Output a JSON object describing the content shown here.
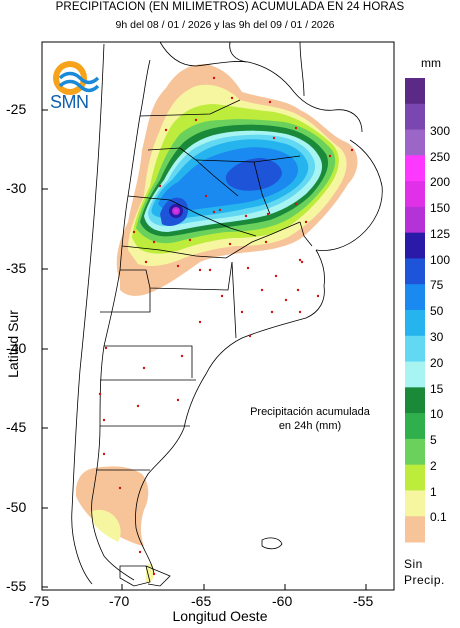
{
  "header": {
    "title": "PRECIPITACION (EN MILIMETROS) ACUMULADA EN 24 HORAS",
    "subtitle": "9h del 08 / 01 / 2026  y las 9h del 09 / 01 / 2026"
  },
  "logo": {
    "text": "SMN",
    "icon": "smn-logo-icon"
  },
  "axes": {
    "xlabel": "Longitud Oeste",
    "ylabel": "Latitud Sur",
    "xticks": [
      "-75",
      "-70",
      "-65",
      "-60",
      "-55"
    ],
    "yticks": [
      "-25",
      "-30",
      "-35",
      "-40",
      "-45",
      "-50",
      "-55"
    ]
  },
  "legend": {
    "unit": "mm",
    "levels": [
      "300",
      "250",
      "200",
      "150",
      "125",
      "100",
      "75",
      "50",
      "30",
      "20",
      "15",
      "10",
      "5",
      "2",
      "1",
      "0.1"
    ],
    "no_precip_label": "Sin Precip.",
    "colors": [
      "#5b2a86",
      "#7a46b0",
      "#9c66c8",
      "#ff38ff",
      "#e030e8",
      "#b533d6",
      "#2a1aa8",
      "#1e55d8",
      "#1a8af0",
      "#26b4ee",
      "#62d8f2",
      "#a8f4f2",
      "#1a8a3a",
      "#2fb04c",
      "#6ad25c",
      "#bdec3c",
      "#f6f6a0",
      "#f7c49a"
    ]
  },
  "note": {
    "line1": "Precipitación acumulada",
    "line2": "en 24h (mm)"
  }
}
